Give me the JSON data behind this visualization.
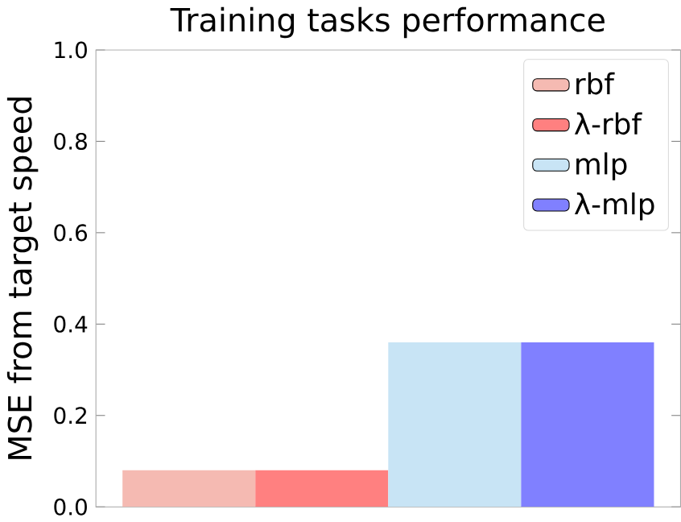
{
  "chart_data": {
    "type": "bar",
    "title": "Training tasks performance",
    "ylabel": "MSE from target speed",
    "categories": [
      null
    ],
    "series": [
      {
        "name": "rbf",
        "color": "#f5bab2",
        "values": [
          0.08
        ]
      },
      {
        "name": "λ-rbf",
        "color": "#ff8080",
        "values": [
          0.08
        ]
      },
      {
        "name": "mlp",
        "color": "#c8e4f5",
        "values": [
          0.36
        ]
      },
      {
        "name": "λ-mlp",
        "color": "#8080ff",
        "values": [
          0.36
        ]
      }
    ],
    "ylim": [
      0,
      1
    ],
    "yticks": [
      {
        "value": 0,
        "label": "0.0"
      },
      {
        "value": 0.2,
        "label": "0.2"
      },
      {
        "value": 0.4,
        "label": "0.4"
      },
      {
        "value": 0.6,
        "label": "0.6"
      },
      {
        "value": 0.8,
        "label": "0.8"
      },
      {
        "value": 1,
        "label": "1.0"
      }
    ],
    "legend": "top right",
    "tick_labels": "y"
  }
}
